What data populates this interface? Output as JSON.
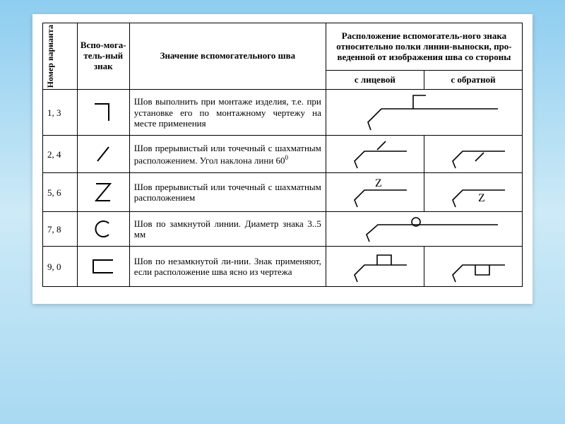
{
  "table": {
    "background_color": "#ffffff",
    "border_color": "#000000",
    "stroke_width": 2,
    "font_family": "Times New Roman",
    "header": {
      "col_num": "Номер варианта",
      "col_sign": "Вспо-мога-тель-ный знак",
      "col_desc": "Значение вспомогательного шва",
      "col_pos": "Расположение вспомогатель-ного знака относительно полки линии-выноски, про-веденной от изображения шва со стороны",
      "col_face": "с лицевой",
      "col_back": "с обратной"
    },
    "rows": [
      {
        "num": "1, 3",
        "sign": "mount",
        "desc": "Шов выполнить при монтаже изделия, т.е. при установке его по монтажному чертежу на месте применения"
      },
      {
        "num": "2, 4",
        "sign": "slash",
        "desc_html": "Шов прерывистый или точечный с шахматным расположением. Угол наклона лини 60<sup>0</sup>"
      },
      {
        "num": "5, 6",
        "sign": "zed",
        "desc": "Шов прерывистый или точечный с шахматным расположением"
      },
      {
        "num": "7, 8",
        "sign": "circle",
        "desc": "Шов по замкнутой линии. Диаметр знака 3..5 мм"
      },
      {
        "num": "9, 0",
        "sign": "bracket",
        "desc": "Шов по незамкнутой ли-нии. Знак применяют, если расположение шва ясно из чертежа"
      }
    ],
    "signs": {
      "mount": {
        "svg": "<svg width='44' height='40' viewBox='0 0 44 40'><path d='M10 8 L30 8 L30 32' fill='none' stroke='#000' stroke-width='2'/></svg>"
      },
      "slash": {
        "svg": "<svg width='44' height='40' viewBox='0 0 44 40'><path d='M14 30 L30 10' fill='none' stroke='#000' stroke-width='2'/></svg>"
      },
      "zed": {
        "svg": "<svg width='44' height='44' viewBox='0 0 44 44'><path d='M12 10 L32 10 L12 34 L32 34' fill='none' stroke='#000' stroke-width='2'/></svg>"
      },
      "circle": {
        "svg": "<svg width='44' height='36' viewBox='0 0 44 36'><path d='M30 10 A11 11 0 1 0 30 26' fill='none' stroke='#000' stroke-width='2'/></svg>"
      },
      "bracket": {
        "svg": "<svg width='48' height='34' viewBox='0 0 48 34'><path d='M38 8 L10 8 L10 26 L38 26' fill='none' stroke='#000' stroke-width='2'/></svg>"
      }
    },
    "leaders": {
      "face_plain": "<svg width='110' height='48' viewBox='0 0 110 48'><path d='M30 44 L26 34 L40 20 L100 20' fill='none' stroke='#000' stroke-width='1.6'/></svg>",
      "back_plain": "<svg width='110' height='48' viewBox='0 0 110 48'><path d='M30 44 L26 34 L40 20 L100 20' fill='none' stroke='#000' stroke-width='1.6'/></svg>",
      "face_mount": "<svg width='230' height='60' viewBox='0 0 230 60'><path d='M40 55 L36 44 L55 25 L220 25' fill='none' stroke='#000' stroke-width='1.6'/><path d='M100 25 L100 6 L118 6' fill='none' stroke='#000' stroke-width='1.6'/></svg>",
      "face_slash": "<svg width='110' height='48' viewBox='0 0 110 48'><path d='M30 44 L26 34 L40 20 L100 20' fill='none' stroke='#000' stroke-width='1.6'/><path d='M58 18 L70 6' fill='none' stroke='#000' stroke-width='1.6'/></svg>",
      "back_slash": "<svg width='110' height='48' viewBox='0 0 110 48'><path d='M30 44 L26 34 L40 20 L100 20' fill='none' stroke='#000' stroke-width='1.6'/><path d='M58 34 L70 22' fill='none' stroke='#000' stroke-width='1.6'/></svg>",
      "face_zed": "<svg width='110' height='50' viewBox='0 0 110 50'><path d='M30 46 L26 36 L40 22 L100 22' fill='none' stroke='#000' stroke-width='1.6'/><text x='55' y='17' font-family='Times New Roman' font-size='16'>Z</text></svg>",
      "back_zed": "<svg width='110' height='50' viewBox='0 0 110 50'><path d='M30 46 L26 36 L40 22 L100 22' fill='none' stroke='#000' stroke-width='1.6'/><text x='62' y='38' font-family='Times New Roman' font-size='16'>Z</text></svg>",
      "face_circle": "<svg width='230' height='44' viewBox='0 0 230 44'><path d='M38 40 L34 30 L50 16 L220 16' fill='none' stroke='#000' stroke-width='1.6'/><circle cx='104' cy='12' r='6' fill='none' stroke='#000' stroke-width='1.6'/></svg>",
      "face_bracket": "<svg width='110' height='52' viewBox='0 0 110 52'><path d='M30 48 L26 38 L40 24 L100 24' fill='none' stroke='#000' stroke-width='1.6'/><path d='M78 24 L78 10 L58 10 L58 24' fill='none' stroke='#000' stroke-width='1.6'/></svg>",
      "back_bracket": "<svg width='110' height='52' viewBox='0 0 110 52'><path d='M30 48 L26 38 L40 24 L100 24' fill='none' stroke='#000' stroke-width='1.6'/><path d='M78 24 L78 38 L58 38 L58 24' fill='none' stroke='#000' stroke-width='1.6'/></svg>"
    }
  }
}
